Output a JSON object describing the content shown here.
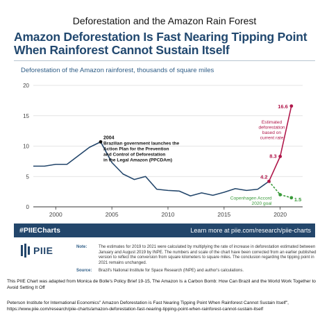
{
  "page": {
    "top_title": "Deforestation and the Amazon Rain Forest",
    "headline": "Amazon Deforestation Is Fast Nearing Tipping Point When Rainforest Cannot Sustain Itself",
    "subtitle": "Deforestation of the Amazon rainforest, thousands of square miles"
  },
  "footer": {
    "hashtag": "#PIIECharts",
    "learn_more": "Learn more at piie.com/research/piie-charts",
    "logo_text": "PIIE",
    "note_label": "Note:",
    "note_text": "The estimates for 2019 to 2021 were calculated by multiplying the rate of increase in deforestation estimated between January and August 2019 by INPE. The numbers and scale of the chart have been corrected from an earlier published version to reflect the conversion from square kilometers to square miles. The conclusion regarding the tipping point in 2021 remains unchanged.",
    "source_label": "Source:",
    "source_text": "Brazil's National Institute for Space Research (INPE) and author's calculations."
  },
  "credits": {
    "line1": "This PIIE Chart was adapted from Monica de Bolle's Policy Brief 19-15, The Amazon Is a Carbon Bomb: How Can Brazil and the World Work Together to Avoid Setting It Off",
    "line2": "Peterson Institute for International Economics\" Amazon Deforestation is Fast Nearing Tipping Point When Rainforest Cannot Sustain Itself\", https://www.piie.com/research/piie-charts/amazon-deforestation-fast-nearing-tipping-point-when-rainforest-cannot-sustain-itself"
  },
  "colors": {
    "navy": "#23466b",
    "main_line": "#23466b",
    "estimated": "#b0174a",
    "accord": "#3a9a3a"
  },
  "chart_data": {
    "type": "line",
    "xlim": [
      1998,
      2022
    ],
    "ylim": [
      0,
      20
    ],
    "x_ticks": [
      2000,
      2005,
      2010,
      2015,
      2020
    ],
    "y_ticks": [
      0,
      5,
      10,
      15,
      20
    ],
    "grid": "horizontal",
    "series": [
      {
        "key": "historical",
        "x": [
          1998,
          1999,
          2000,
          2001,
          2002,
          2003,
          2004,
          2005,
          2006,
          2007,
          2008,
          2009,
          2010,
          2011,
          2012,
          2013,
          2014,
          2015,
          2016,
          2017,
          2018,
          2019
        ],
        "values": [
          6.7,
          6.7,
          7.0,
          7.0,
          8.4,
          9.8,
          10.7,
          7.3,
          5.4,
          4.5,
          5.0,
          2.9,
          2.7,
          2.6,
          1.8,
          2.3,
          1.9,
          2.4,
          3.0,
          2.7,
          2.9,
          4.2
        ]
      },
      {
        "key": "estimated",
        "name": "Estimated deforestation based on current rate",
        "x": [
          2019,
          2020,
          2021
        ],
        "values": [
          4.2,
          8.3,
          16.6
        ]
      },
      {
        "key": "accord",
        "name": "Copenhagen Accord 2020 goal",
        "x": [
          2019,
          2020,
          2021
        ],
        "values": [
          4.2,
          2.0,
          1.5
        ]
      }
    ],
    "annotations": {
      "event_year": "2004",
      "event_text": [
        "Brazilian government launches the",
        "Action Plan for the Prevention",
        "and Control of Deforestation",
        "in the Legal Amazon (PPCDAm)"
      ],
      "estimated_label": [
        "Estimated",
        "deforestation",
        "based on",
        "current rate"
      ],
      "accord_label": [
        "Copenhagen Accord",
        "2020 goal"
      ],
      "point_labels": [
        {
          "x": 2019,
          "y": 4.2,
          "text": "4.2"
        },
        {
          "x": 2020,
          "y": 8.3,
          "text": "8.3"
        },
        {
          "x": 2021,
          "y": 16.6,
          "text": "16.6"
        },
        {
          "x": 2021,
          "y": 1.5,
          "text": "1.5"
        }
      ]
    }
  }
}
